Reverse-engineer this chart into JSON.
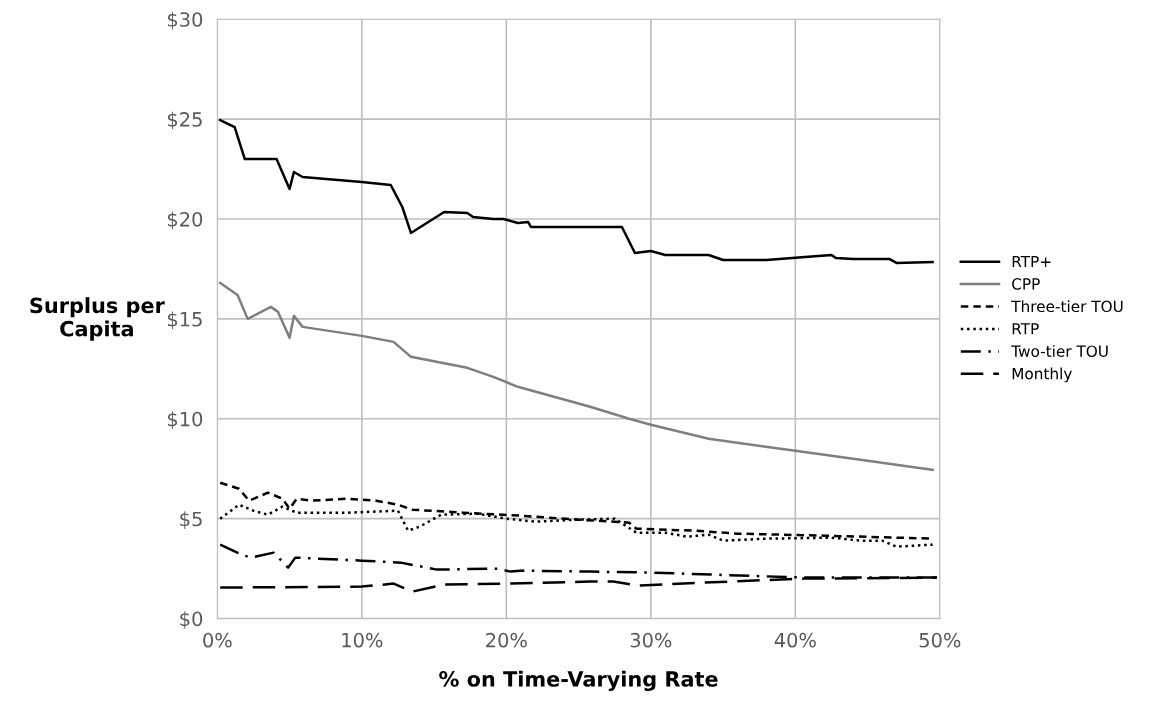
{
  "chart_data": {
    "type": "line",
    "xlabel": "% on Time-Varying Rate",
    "ylabel": "Surplus per\nCapita",
    "xlim": [
      0,
      50
    ],
    "ylim": [
      0,
      30
    ],
    "xticks": [
      {
        "value": 0,
        "label": "0%"
      },
      {
        "value": 10,
        "label": "10%"
      },
      {
        "value": 20,
        "label": "20%"
      },
      {
        "value": 30,
        "label": "30%"
      },
      {
        "value": 40,
        "label": "40%"
      },
      {
        "value": 50,
        "label": "50%"
      }
    ],
    "yticks": [
      {
        "value": 0,
        "label": "$0"
      },
      {
        "value": 5,
        "label": "$5"
      },
      {
        "value": 10,
        "label": "$10"
      },
      {
        "value": 15,
        "label": "$15"
      },
      {
        "value": 20,
        "label": "$20"
      },
      {
        "value": 25,
        "label": "$25"
      },
      {
        "value": 30,
        "label": "$30"
      }
    ],
    "grid": true,
    "legend": "right",
    "marker": "none",
    "series": [
      {
        "name": "RTP+",
        "color": "#000000",
        "line_style": "solid",
        "x": [
          0.2,
          1.2,
          1.9,
          2.3,
          4.1,
          5.0,
          5.3,
          5.9,
          10,
          12,
          12.8,
          13.4,
          15.7,
          17.3,
          17.7,
          19.1,
          19.8,
          20.8,
          21.5,
          21.7,
          25.8,
          28.0,
          28.9,
          30,
          31,
          34,
          35,
          38,
          42.5,
          42.8,
          44,
          46.5,
          47,
          49.5
        ],
        "values": [
          24.95,
          24.6,
          23.0,
          23.0,
          23.0,
          21.5,
          22.35,
          22.1,
          21.85,
          21.7,
          20.6,
          19.3,
          20.35,
          20.3,
          20.1,
          20.0,
          20.0,
          19.8,
          19.85,
          19.6,
          19.6,
          19.6,
          18.3,
          18.4,
          18.2,
          18.2,
          17.95,
          17.95,
          18.2,
          18.05,
          18.0,
          18.0,
          17.8,
          17.85
        ]
      },
      {
        "name": "CPP",
        "color": "#7f7f7f",
        "line_style": "solid",
        "x": [
          0.2,
          1.4,
          2.1,
          3.7,
          4.2,
          5.0,
          5.3,
          5.9,
          10,
          12.2,
          13.4,
          17.3,
          19.1,
          20.8,
          25.8,
          28.5,
          30,
          34,
          40,
          45,
          49.5
        ],
        "values": [
          16.8,
          16.2,
          15.0,
          15.6,
          15.35,
          14.05,
          15.15,
          14.6,
          14.15,
          13.85,
          13.1,
          12.55,
          12.1,
          11.6,
          10.6,
          10.0,
          9.7,
          9.0,
          8.4,
          7.9,
          7.45
        ]
      },
      {
        "name": "Three-tier TOU",
        "color": "#000000",
        "line_style": "dashed",
        "x": [
          0.2,
          1.5,
          2.2,
          3.5,
          4.5,
          5.0,
          5.5,
          6.5,
          9,
          11,
          12.5,
          13.5,
          17,
          21,
          25,
          28.5,
          29,
          33,
          36,
          42,
          49.5
        ],
        "values": [
          6.8,
          6.5,
          5.9,
          6.3,
          6.0,
          5.5,
          6.0,
          5.9,
          6.0,
          5.9,
          5.7,
          5.45,
          5.3,
          5.15,
          4.95,
          4.8,
          4.5,
          4.4,
          4.25,
          4.15,
          4.0
        ]
      },
      {
        "name": "RTP",
        "color": "#000000",
        "line_style": "dotted",
        "x": [
          0.2,
          1.5,
          2.5,
          3.5,
          4.5,
          5.5,
          9,
          12.5,
          13.2,
          14,
          15.5,
          18,
          20,
          22,
          25,
          27.5,
          29,
          31,
          32.5,
          34,
          35,
          38,
          42.5,
          44.5,
          46,
          47,
          49.5
        ],
        "values": [
          5.0,
          5.7,
          5.4,
          5.2,
          5.6,
          5.3,
          5.3,
          5.4,
          4.4,
          4.6,
          5.2,
          5.25,
          5.0,
          4.85,
          4.95,
          5.0,
          4.3,
          4.3,
          4.1,
          4.2,
          3.9,
          4.0,
          4.05,
          3.9,
          3.9,
          3.6,
          3.7
        ]
      },
      {
        "name": "Two-tier TOU",
        "color": "#000000",
        "line_style": "dashdot",
        "x": [
          0.2,
          1.7,
          2.3,
          3.9,
          4.9,
          5.4,
          10,
          12.7,
          15.2,
          19.4,
          20.3,
          21.2,
          25.8,
          30.2,
          40.6,
          49.8
        ],
        "values": [
          3.7,
          3.2,
          3.05,
          3.3,
          2.55,
          3.05,
          2.9,
          2.8,
          2.45,
          2.5,
          2.35,
          2.4,
          2.35,
          2.3,
          2.05,
          2.05
        ]
      },
      {
        "name": "Monthly",
        "color": "#000000",
        "line_style": "longdash",
        "x": [
          0.2,
          10,
          12.2,
          13.5,
          15.7,
          20.3,
          25.8,
          27.4,
          29.1,
          33.6,
          40.6,
          49.8
        ],
        "values": [
          1.55,
          1.6,
          1.75,
          1.35,
          1.7,
          1.75,
          1.85,
          1.85,
          1.65,
          1.8,
          2.0,
          2.05
        ]
      }
    ]
  }
}
